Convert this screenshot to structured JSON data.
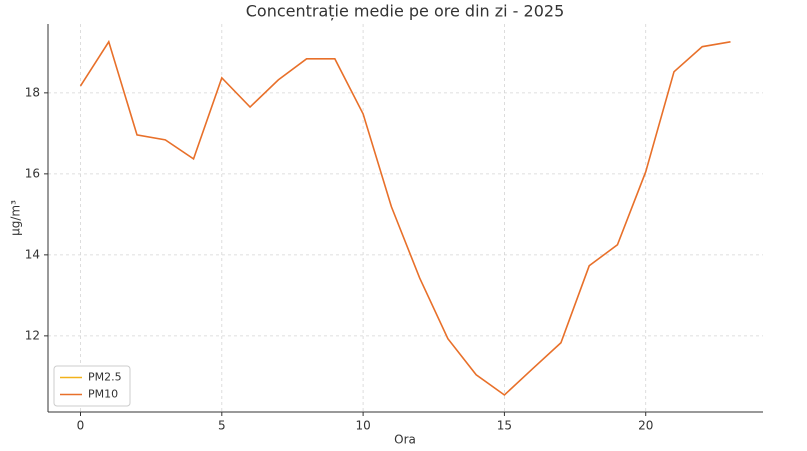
{
  "chart_data": {
    "type": "line",
    "title": "Concentrație medie pe ore din zi - 2025",
    "x_label": "Ora",
    "y_label": "µg/m³",
    "x": [
      0,
      1,
      2,
      3,
      4,
      5,
      6,
      7,
      8,
      9,
      10,
      11,
      12,
      13,
      14,
      15,
      16,
      17,
      18,
      19,
      20,
      21,
      22,
      23
    ],
    "series": [
      {
        "name": "PM2.5",
        "color": "#f2b21b",
        "values": [
          null,
          null,
          null,
          null,
          null,
          null,
          null,
          null,
          null,
          null,
          null,
          null,
          null,
          null,
          null,
          null,
          null,
          null,
          null,
          null,
          null,
          null,
          null,
          null
        ]
      },
      {
        "name": "PM10",
        "color": "#e8702a",
        "values": [
          18.17,
          19.26,
          16.96,
          16.84,
          16.37,
          18.37,
          17.65,
          18.32,
          18.84,
          18.84,
          17.48,
          15.19,
          13.43,
          11.93,
          11.04,
          10.54,
          11.19,
          11.83,
          13.73,
          14.25,
          16.05,
          18.52,
          19.14,
          19.26
        ]
      }
    ],
    "xlim": [
      -1.15,
      24.15
    ],
    "xticks": [
      0,
      5,
      10,
      15,
      20
    ],
    "ylim": [
      10.12,
      19.7
    ],
    "yticks": [
      12,
      14,
      16,
      18
    ],
    "grid": true,
    "legend": "lower left"
  }
}
